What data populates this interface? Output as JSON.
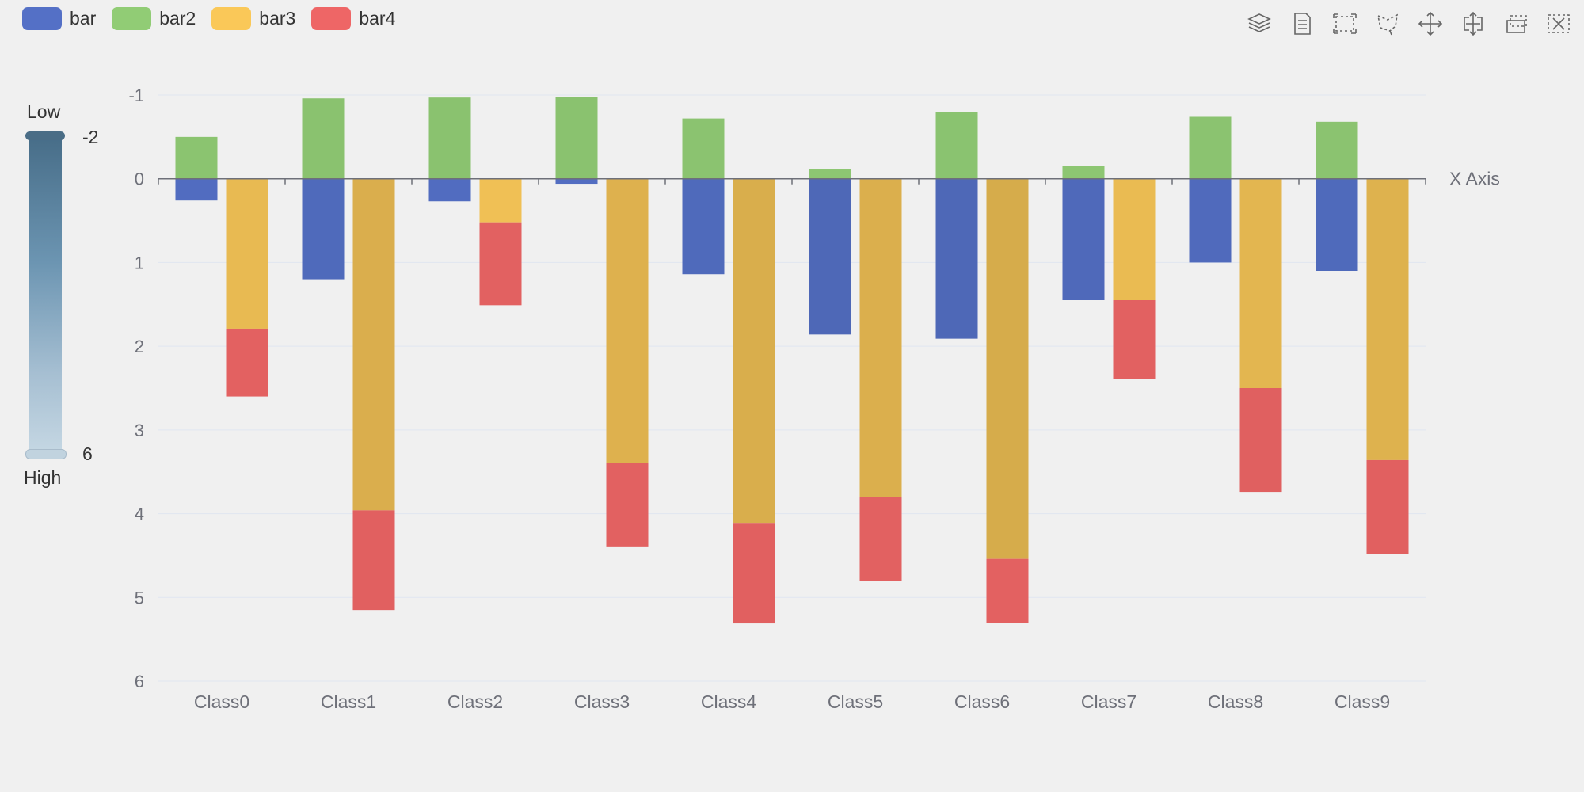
{
  "legend": [
    {
      "label": "bar",
      "color": "#5470c6"
    },
    {
      "label": "bar2",
      "color": "#91cc75"
    },
    {
      "label": "bar3",
      "color": "#fac858"
    },
    {
      "label": "bar4",
      "color": "#ee6666"
    }
  ],
  "toolbox": [
    {
      "name": "stack-icon"
    },
    {
      "name": "data-view-icon"
    },
    {
      "name": "rect-select-icon"
    },
    {
      "name": "lasso-select-icon"
    },
    {
      "name": "zoom-icon"
    },
    {
      "name": "zoom-back-icon"
    },
    {
      "name": "restore-icon"
    },
    {
      "name": "clear-icon"
    }
  ],
  "visual_map": {
    "low_label": "Low",
    "high_label": "High",
    "min_value": "-2",
    "max_value": "6",
    "color_low_end": "#476d88",
    "color_high_end": "#c5d7e3"
  },
  "chart_data": {
    "type": "bar",
    "xlabel": "X Axis",
    "ylabel": "",
    "y_inverse": true,
    "ylim": [
      -1,
      6
    ],
    "yticks": [
      -1,
      0,
      1,
      2,
      3,
      4,
      5,
      6
    ],
    "grid": true,
    "legend_position": "top-left",
    "categories": [
      "Class0",
      "Class1",
      "Class2",
      "Class3",
      "Class4",
      "Class5",
      "Class6",
      "Class7",
      "Class8",
      "Class9"
    ],
    "series": [
      {
        "name": "bar",
        "stack": "one",
        "color": "#5470c6",
        "values": [
          0.26,
          1.2,
          0.27,
          0.06,
          1.14,
          1.86,
          1.91,
          1.45,
          1.0,
          1.1
        ]
      },
      {
        "name": "bar2",
        "stack": "one",
        "color": "#91cc75",
        "values": [
          -0.5,
          -0.96,
          -0.97,
          -0.98,
          -0.72,
          -0.12,
          -0.8,
          -0.15,
          -0.74,
          -0.68
        ]
      },
      {
        "name": "bar3",
        "stack": "two",
        "color": "#fac858",
        "values": [
          1.79,
          3.96,
          0.52,
          3.39,
          4.11,
          3.8,
          4.54,
          1.45,
          2.5,
          3.36
        ]
      },
      {
        "name": "bar4",
        "stack": "two",
        "color": "#ee6666",
        "values": [
          0.81,
          1.19,
          0.99,
          1.01,
          1.2,
          1.0,
          0.76,
          0.94,
          1.24,
          1.12
        ]
      }
    ]
  }
}
